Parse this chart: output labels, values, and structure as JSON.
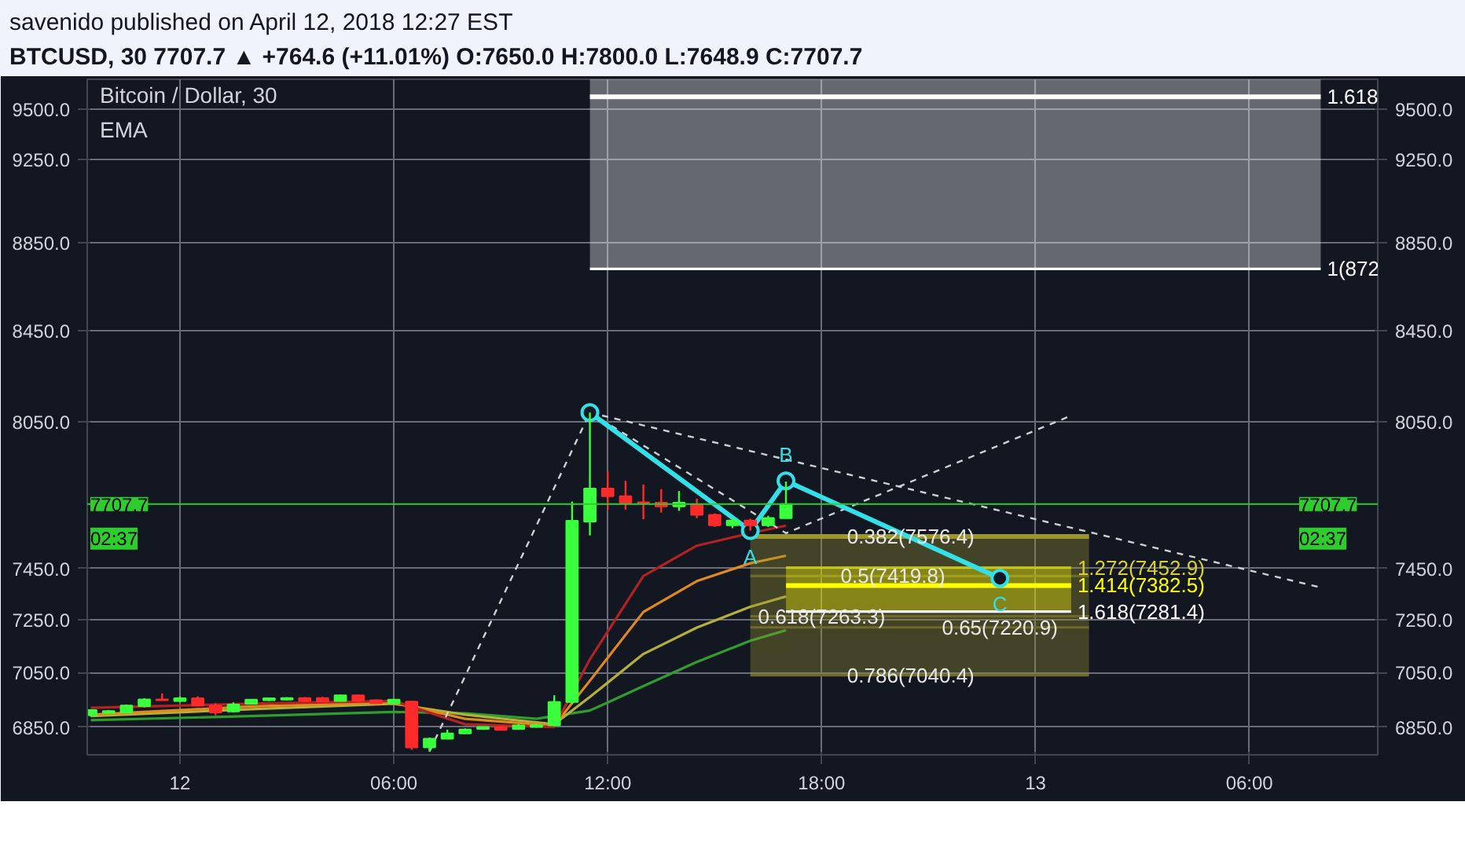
{
  "chart_data": {
    "type": "candlestick",
    "title": "savenido published on April 12, 2018 12:27 EST",
    "subtitle": "BTCUSD, 30 7707.7 ▲ +764.6 (+11.01%) O:7650.0 H:7800.0 L:7648.9 C:7707.7",
    "x": [
      "2018-04-11T21:30",
      "2018-04-11T22:00",
      "2018-04-11T22:30",
      "2018-04-11T23:00",
      "2018-04-11T23:30",
      "2018-04-12T00:00",
      "2018-04-12T00:30",
      "2018-04-12T01:00",
      "2018-04-12T01:30",
      "2018-04-12T02:00",
      "2018-04-12T02:30",
      "2018-04-12T03:00",
      "2018-04-12T03:30",
      "2018-04-12T04:00",
      "2018-04-12T04:30",
      "2018-04-12T05:00",
      "2018-04-12T05:30",
      "2018-04-12T06:00",
      "2018-04-12T06:30",
      "2018-04-12T07:00",
      "2018-04-12T07:30",
      "2018-04-12T08:00",
      "2018-04-12T08:30",
      "2018-04-12T09:00",
      "2018-04-12T09:30",
      "2018-04-12T10:00",
      "2018-04-12T10:30",
      "2018-04-12T11:00",
      "2018-04-12T11:30",
      "2018-04-12T12:00",
      "2018-04-12T12:30",
      "2018-04-12T13:00",
      "2018-04-12T13:30",
      "2018-04-12T14:00",
      "2018-04-12T14:30",
      "2018-04-12T15:00",
      "2018-04-12T15:30",
      "2018-04-12T16:00",
      "2018-04-12T16:30",
      "2018-04-12T17:00"
    ],
    "ohlc": [
      [
        6893,
        6915,
        6888,
        6912
      ],
      [
        6901,
        6912,
        6898,
        6908
      ],
      [
        6903,
        6932,
        6900,
        6928
      ],
      [
        6926,
        6955,
        6922,
        6951
      ],
      [
        6951,
        6973,
        6946,
        6948
      ],
      [
        6945,
        6962,
        6942,
        6955
      ],
      [
        6955,
        6962,
        6925,
        6928
      ],
      [
        6928,
        6936,
        6893,
        6903
      ],
      [
        6907,
        6940,
        6903,
        6932
      ],
      [
        6935,
        6952,
        6932,
        6950
      ],
      [
        6948,
        6958,
        6945,
        6955
      ],
      [
        6950,
        6959,
        6947,
        6956
      ],
      [
        6956,
        6959,
        6942,
        6945
      ],
      [
        6956,
        6960,
        6940,
        6943
      ],
      [
        6945,
        6968,
        6943,
        6966
      ],
      [
        6966,
        6968,
        6942,
        6945
      ],
      [
        6948,
        6950,
        6934,
        6937
      ],
      [
        6937,
        6953,
        6935,
        6950
      ],
      [
        6943,
        6945,
        6768,
        6777
      ],
      [
        6777,
        6812,
        6762,
        6808
      ],
      [
        6808,
        6840,
        6806,
        6827
      ],
      [
        6827,
        6845,
        6825,
        6841
      ],
      [
        6843,
        6852,
        6840,
        6850
      ],
      [
        6850,
        6853,
        6838,
        6840
      ],
      [
        6843,
        6860,
        6840,
        6856
      ],
      [
        6850,
        6862,
        6848,
        6857
      ],
      [
        6856,
        6966,
        6852,
        6941
      ],
      [
        6941,
        7718,
        6935,
        7640
      ],
      [
        7637,
        8090,
        7581,
        7771
      ],
      [
        7771,
        7842,
        7685,
        7740
      ],
      [
        7740,
        7803,
        7685,
        7713
      ],
      [
        7715,
        7788,
        7646,
        7713
      ],
      [
        7713,
        7769,
        7673,
        7698
      ],
      [
        7698,
        7761,
        7680,
        7713
      ],
      [
        7706,
        7730,
        7650,
        7664
      ],
      [
        7664,
        7670,
        7615,
        7622
      ],
      [
        7622,
        7650,
        7610,
        7641
      ],
      [
        7641,
        7648,
        7600,
        7622
      ],
      [
        7622,
        7660,
        7615,
        7651
      ],
      [
        7650,
        7800,
        7648.9,
        7707.7
      ]
    ],
    "colors": [
      "#39ff3c",
      "#39ff3c",
      "#39ff3c",
      "#39ff3c",
      "#ff2a2a",
      "#39ff3c",
      "#ff2a2a",
      "#ff2a2a",
      "#39ff3c",
      "#39ff3c",
      "#39ff3c",
      "#39ff3c",
      "#ff2a2a",
      "#ff2a2a",
      "#39ff3c",
      "#ff2a2a",
      "#ff2a2a",
      "#39ff3c",
      "#ff2a2a",
      "#39ff3c",
      "#39ff3c",
      "#39ff3c",
      "#39ff3c",
      "#ff2a2a",
      "#39ff3c",
      "#39ff3c",
      "#39ff3c",
      "#39ff3c",
      "#39ff3c",
      "#ff2a2a",
      "#ff2a2a",
      "#ff2a2a",
      "#ff2a2a",
      "#39ff3c",
      "#ff2a2a",
      "#ff2a2a",
      "#39ff3c",
      "#ff2a2a",
      "#39ff3c",
      "#39ff3c"
    ],
    "series": [
      {
        "type": "line",
        "color": "#2e9e2e",
        "x": [
          "2018-04-11T21:30",
          "2018-04-12T02:00",
          "2018-04-12T06:00",
          "2018-04-12T08:00",
          "2018-04-12T10:00",
          "2018-04-12T11:30",
          "2018-04-12T13:00",
          "2018-04-12T14:30",
          "2018-04-12T16:00",
          "2018-04-12T17:00"
        ],
        "values": [
          6875,
          6890,
          6905,
          6900,
          6880,
          6910,
          7000,
          7090,
          7170,
          7210
        ]
      },
      {
        "type": "line",
        "color": "#b5b03a",
        "x": [
          "2018-04-11T21:30",
          "2018-04-12T02:00",
          "2018-04-12T06:00",
          "2018-04-12T08:00",
          "2018-04-12T10:30",
          "2018-04-12T11:30",
          "2018-04-12T13:00",
          "2018-04-12T14:30",
          "2018-04-12T16:00",
          "2018-04-12T17:00"
        ],
        "values": [
          6890,
          6915,
          6935,
          6895,
          6860,
          6960,
          7120,
          7220,
          7300,
          7340
        ]
      },
      {
        "type": "line",
        "color": "#e08a1e",
        "x": [
          "2018-04-11T21:30",
          "2018-04-12T02:00",
          "2018-04-12T06:00",
          "2018-04-12T08:00",
          "2018-04-12T10:30",
          "2018-04-12T11:30",
          "2018-04-12T13:00",
          "2018-04-12T14:30",
          "2018-04-12T16:00",
          "2018-04-12T17:00"
        ],
        "values": [
          6895,
          6925,
          6940,
          6880,
          6855,
          7020,
          7280,
          7400,
          7470,
          7500
        ]
      },
      {
        "type": "line",
        "color": "#b22222",
        "x": [
          "2018-04-11T21:30",
          "2018-04-12T02:00",
          "2018-04-12T06:00",
          "2018-04-12T08:00",
          "2018-04-12T10:30",
          "2018-04-12T11:30",
          "2018-04-12T13:00",
          "2018-04-12T14:30",
          "2018-04-12T16:00",
          "2018-04-12T17:00"
        ],
        "values": [
          6920,
          6935,
          6945,
          6860,
          6850,
          7100,
          7420,
          7540,
          7590,
          7620
        ]
      },
      {
        "type": "line",
        "name": "1.618",
        "color": "#ffffff",
        "x": [
          "2018-04-12T11:30",
          "2018-04-13T08:00"
        ],
        "values": [
          9561,
          9561
        ],
        "lower": [
          8729,
          8729
        ],
        "upper": [
          9650,
          9650
        ]
      },
      {
        "type": "line",
        "name": "1(872",
        "color": "#ffffff",
        "x": [
          "2018-04-12T11:30",
          "2018-04-13T08:00"
        ],
        "values": [
          8729,
          8729
        ]
      },
      {
        "type": "line",
        "color": "#9c9630",
        "x": [
          "2018-04-12T16:00",
          "2018-04-13T01:30"
        ],
        "values": [
          7576.4,
          7576.4
        ],
        "lower": [
          7040.4,
          7040.4
        ],
        "upper": [
          7576.4,
          7576.4
        ]
      },
      {
        "type": "line",
        "color": "#6e6a2a",
        "x": [
          "2018-04-12T16:00",
          "2018-04-13T01:30"
        ],
        "values": [
          7419.8,
          7419.8
        ]
      },
      {
        "type": "line",
        "color": "#6e6a2a",
        "x": [
          "2018-04-12T16:00",
          "2018-04-13T01:30"
        ],
        "values": [
          7263.3,
          7263.3
        ]
      },
      {
        "type": "line",
        "color": "#6e6a2a",
        "x": [
          "2018-04-12T16:00",
          "2018-04-13T01:30"
        ],
        "values": [
          7220.9,
          7220.9
        ]
      },
      {
        "type": "line",
        "color": "#6e6a2a",
        "x": [
          "2018-04-12T16:00",
          "2018-04-13T01:30"
        ],
        "values": [
          7040.4,
          7040.4
        ]
      },
      {
        "type": "line",
        "name": "1.272(7452.9)",
        "color": "#b8b820",
        "x": [
          "2018-04-12T17:00",
          "2018-04-13T01:00"
        ],
        "values": [
          7452.9,
          7452.9
        ]
      },
      {
        "type": "line",
        "name": "1.414(7382.5)",
        "color": "#ffff00",
        "x": [
          "2018-04-12T17:00",
          "2018-04-13T01:00"
        ],
        "values": [
          7382.5,
          7382.5
        ],
        "lower": [
          7281.4,
          7281.4
        ],
        "upper": [
          7452.9,
          7452.9
        ]
      },
      {
        "type": "line",
        "name": "1.618(7281.4)",
        "color": "#ffffff",
        "x": [
          "2018-04-12T17:00",
          "2018-04-13T01:00"
        ],
        "values": [
          7281.4,
          7281.4
        ]
      },
      {
        "type": "line",
        "color": "#d0d0d0",
        "line_style": "dashed",
        "x": [
          "2018-04-12T07:00",
          "2018-04-12T11:30"
        ],
        "values": [
          6762,
          8090
        ]
      },
      {
        "type": "line",
        "color": "#d0d0d0",
        "line_style": "dashed",
        "x": [
          "2018-04-12T11:30",
          "2018-04-13T08:00"
        ],
        "values": [
          8090,
          7375
        ]
      },
      {
        "type": "line",
        "color": "#d0d0d0",
        "line_style": "dashed",
        "x": [
          "2018-04-12T11:30",
          "2018-04-12T17:00",
          "2018-04-13T01:00"
        ],
        "values": [
          8090,
          7590,
          8077
        ]
      },
      {
        "type": "line",
        "color": "#33e0e8",
        "marker": "circle",
        "x": [
          "2018-04-12T11:30",
          "2018-04-12T16:00",
          "2018-04-12T17:00",
          "2018-04-12T23:00"
        ],
        "values": [
          8090,
          7600,
          7803,
          7411
        ]
      }
    ],
    "ref_lines": [
      {
        "axis": "y",
        "value": 7707.7,
        "label": "7707.7",
        "color": "#2ecc2e"
      }
    ],
    "annotations": [
      "Bitcoin / Dollar, 30",
      "EMA",
      "02:37",
      {
        "text": "A",
        "x": "2018-04-12T16:00",
        "y": 7600
      },
      {
        "text": "B",
        "x": "2018-04-12T17:00",
        "y": 7803
      },
      {
        "text": "C",
        "x": "2018-04-12T23:00",
        "y": 7411
      },
      {
        "text": "0.382(7576.4)",
        "x": "2018-04-12T20:30",
        "y": 7576.4
      },
      {
        "text": "0.5(7419.8)",
        "x": "2018-04-12T20:00",
        "y": 7419.8
      },
      {
        "text": "0.618(7263.3)",
        "x": "2018-04-12T18:00",
        "y": 7263.3
      },
      {
        "text": "0.65(7220.9)",
        "x": "2018-04-12T23:00",
        "y": 7220.9
      },
      {
        "text": "0.786(7040.4)",
        "x": "2018-04-12T20:30",
        "y": 7040.4
      }
    ],
    "log": true,
    "grid": true,
    "xlim": [
      "2018-04-11T21:24",
      "2018-04-13T09:36"
    ],
    "xticks": [
      {
        "value": "2018-04-12T00:00",
        "label": "12"
      },
      {
        "value": "2018-04-12T06:00",
        "label": "06:00"
      },
      {
        "value": "2018-04-12T12:00",
        "label": "12:00"
      },
      {
        "value": "2018-04-12T18:00",
        "label": "18:00"
      },
      {
        "value": "2018-04-13T00:00",
        "label": "13"
      },
      {
        "value": "2018-04-13T06:00",
        "label": "06:00"
      }
    ],
    "ylim": [
      6750,
      9650
    ],
    "yticks": [
      {
        "value": 6850,
        "label": "6850.0"
      },
      {
        "value": 7050,
        "label": "7050.0"
      },
      {
        "value": 7250,
        "label": "7250.0"
      },
      {
        "value": 7450,
        "label": "7450.0"
      },
      {
        "value": 8050,
        "label": "8050.0"
      },
      {
        "value": 8450,
        "label": "8450.0"
      },
      {
        "value": 8850,
        "label": "8850.0"
      },
      {
        "value": 9250,
        "label": "9250.0"
      },
      {
        "value": 9500,
        "label": "9500.0"
      }
    ]
  }
}
